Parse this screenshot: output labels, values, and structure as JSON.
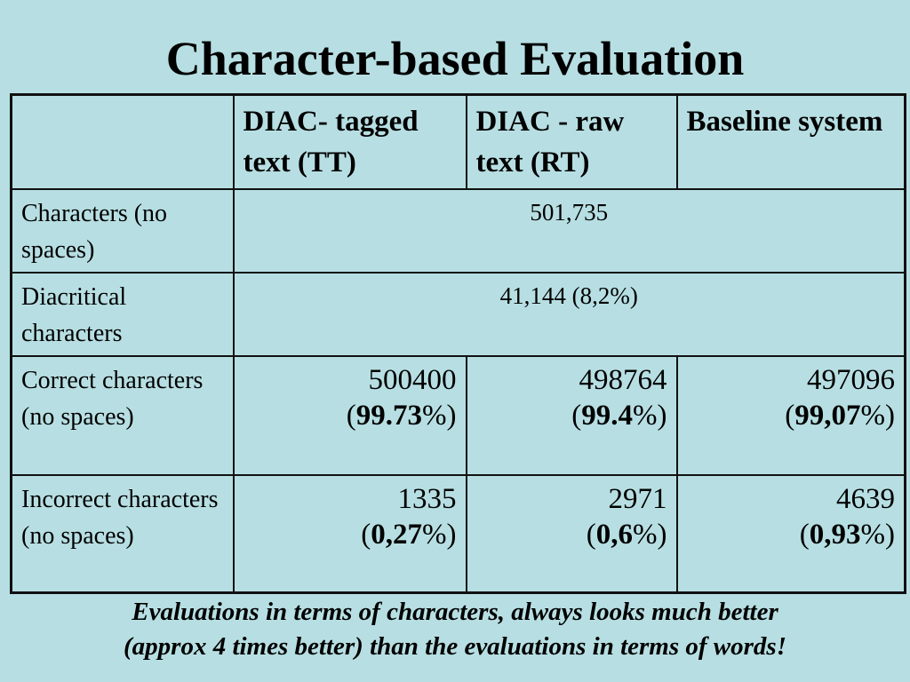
{
  "title": "Character-based Evaluation",
  "table": {
    "headers": [
      "",
      "DIAC- tagged text (TT)",
      "DIAC - raw text (RT)",
      "Baseline system"
    ],
    "rows": [
      {
        "label": "Characters (no spaces)",
        "merged_value": "501,735"
      },
      {
        "label": "Diacritical characters",
        "merged_value": "41,144 (8,2%)"
      },
      {
        "label": "Correct characters (no spaces)",
        "cells": [
          {
            "value": "500400",
            "pct": "99.73"
          },
          {
            "value": "498764",
            "pct": "99.4"
          },
          {
            "value": "497096",
            "pct": "99,07"
          }
        ]
      },
      {
        "label": "Incorrect characters (no spaces)",
        "cells": [
          {
            "value": "1335",
            "pct": "0,27"
          },
          {
            "value": "2971",
            "pct": "0,6"
          },
          {
            "value": "4639",
            "pct": "0,93"
          }
        ]
      }
    ]
  },
  "footnote": {
    "line1": "Evaluations in terms of characters, always looks much better",
    "line2": "(approx 4 times better) than the evaluations in terms of words!"
  },
  "colors": {
    "background": "#b7dfe3",
    "border": "#111111"
  }
}
